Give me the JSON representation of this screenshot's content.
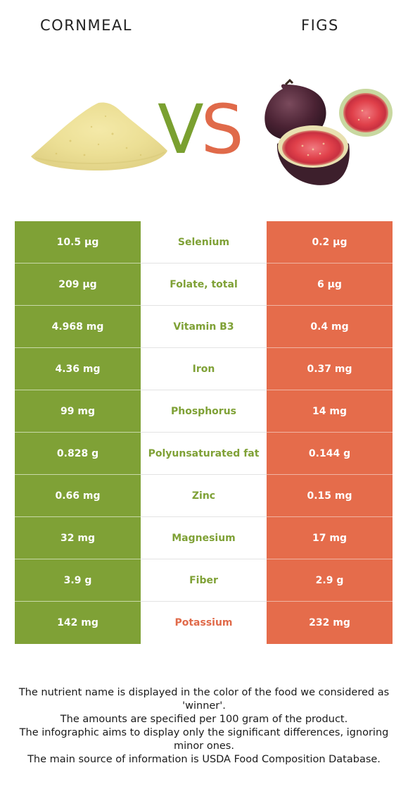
{
  "header": {
    "left_title": "CORNMEAL",
    "right_title": "FIGS",
    "vs_v": "V",
    "vs_s": "S"
  },
  "colors": {
    "cornmeal": "#7fa136",
    "figs": "#e56c4b"
  },
  "rows": [
    {
      "left": "10.5 µg",
      "nutrient": "Selenium",
      "right": "0.2 µg",
      "winner": "cornmeal"
    },
    {
      "left": "209 µg",
      "nutrient": "Folate, total",
      "right": "6 µg",
      "winner": "cornmeal"
    },
    {
      "left": "4.968 mg",
      "nutrient": "Vitamin B3",
      "right": "0.4 mg",
      "winner": "cornmeal"
    },
    {
      "left": "4.36 mg",
      "nutrient": "Iron",
      "right": "0.37 mg",
      "winner": "cornmeal"
    },
    {
      "left": "99 mg",
      "nutrient": "Phosphorus",
      "right": "14 mg",
      "winner": "cornmeal"
    },
    {
      "left": "0.828 g",
      "nutrient": "Polyunsaturated fat",
      "right": "0.144 g",
      "winner": "cornmeal"
    },
    {
      "left": "0.66 mg",
      "nutrient": "Zinc",
      "right": "0.15 mg",
      "winner": "cornmeal"
    },
    {
      "left": "32 mg",
      "nutrient": "Magnesium",
      "right": "17 mg",
      "winner": "cornmeal"
    },
    {
      "left": "3.9 g",
      "nutrient": "Fiber",
      "right": "2.9 g",
      "winner": "cornmeal"
    },
    {
      "left": "142 mg",
      "nutrient": "Potassium",
      "right": "232 mg",
      "winner": "figs"
    }
  ],
  "footer": {
    "line1": "The nutrient name is displayed in the color of the food we considered as 'winner'.",
    "line2": "The amounts are specified per 100 gram of the product.",
    "line3": "The infographic aims to display only the significant differences, ignoring minor ones.",
    "line4": "The main source of information is USDA Food Composition Database."
  }
}
